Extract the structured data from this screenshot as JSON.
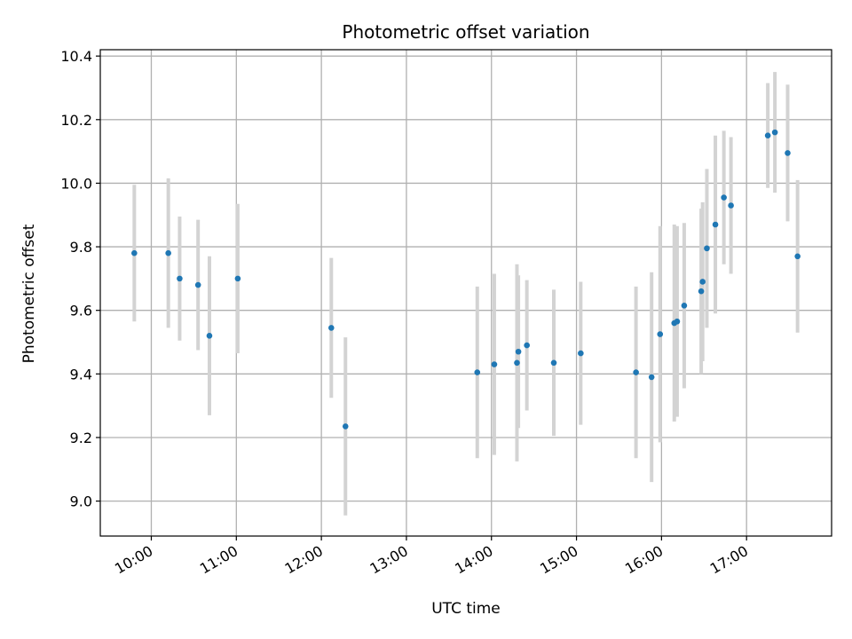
{
  "chart_data": {
    "type": "scatter",
    "title": "Photometric offset variation",
    "xlabel": "UTC time",
    "ylabel": "Photometric offset",
    "x_ticks": [
      "10:00",
      "11:00",
      "12:00",
      "13:00",
      "14:00",
      "15:00",
      "16:00",
      "17:00"
    ],
    "y_ticks": [
      "9.0",
      "9.2",
      "9.4",
      "9.6",
      "9.8",
      "10.0",
      "10.2",
      "10.4"
    ],
    "xlim": [
      "09:24",
      "18:00"
    ],
    "ylim": [
      8.89,
      10.42
    ],
    "grid": true,
    "colors": {
      "points": "#1f77b4",
      "errorbars": "#d3d3d3",
      "grid": "#b0b0b0"
    },
    "series": [
      {
        "points": [
          {
            "x": "09:48",
            "y": 9.78,
            "err": 0.215
          },
          {
            "x": "10:12",
            "y": 9.78,
            "err": 0.235
          },
          {
            "x": "10:20",
            "y": 9.7,
            "err": 0.195
          },
          {
            "x": "10:33",
            "y": 9.68,
            "err": 0.205
          },
          {
            "x": "10:41",
            "y": 9.52,
            "err": 0.25
          },
          {
            "x": "11:01",
            "y": 9.7,
            "err": 0.235
          },
          {
            "x": "12:07",
            "y": 9.545,
            "err": 0.22
          },
          {
            "x": "12:17",
            "y": 9.235,
            "err": 0.28
          },
          {
            "x": "13:50",
            "y": 9.405,
            "err": 0.27
          },
          {
            "x": "14:02",
            "y": 9.43,
            "err": 0.285
          },
          {
            "x": "14:18",
            "y": 9.435,
            "err": 0.31
          },
          {
            "x": "14:19",
            "y": 9.47,
            "err": 0.24
          },
          {
            "x": "14:25",
            "y": 9.49,
            "err": 0.205
          },
          {
            "x": "14:44",
            "y": 9.435,
            "err": 0.23
          },
          {
            "x": "15:03",
            "y": 9.465,
            "err": 0.225
          },
          {
            "x": "15:42",
            "y": 9.405,
            "err": 0.27
          },
          {
            "x": "15:53",
            "y": 9.39,
            "err": 0.33
          },
          {
            "x": "15:59",
            "y": 9.525,
            "err": 0.34
          },
          {
            "x": "16:09",
            "y": 9.56,
            "err": 0.31
          },
          {
            "x": "16:11",
            "y": 9.565,
            "err": 0.3
          },
          {
            "x": "16:16",
            "y": 9.615,
            "err": 0.26
          },
          {
            "x": "16:28",
            "y": 9.66,
            "err": 0.26
          },
          {
            "x": "16:29",
            "y": 9.69,
            "err": 0.25
          },
          {
            "x": "16:32",
            "y": 9.795,
            "err": 0.25
          },
          {
            "x": "16:38",
            "y": 9.87,
            "err": 0.28
          },
          {
            "x": "16:44",
            "y": 9.955,
            "err": 0.21
          },
          {
            "x": "16:49",
            "y": 9.93,
            "err": 0.215
          },
          {
            "x": "17:15",
            "y": 10.15,
            "err": 0.165
          },
          {
            "x": "17:20",
            "y": 10.16,
            "err": 0.19
          },
          {
            "x": "17:29",
            "y": 10.095,
            "err": 0.215
          },
          {
            "x": "17:36",
            "y": 9.77,
            "err": 0.24
          }
        ]
      }
    ]
  }
}
